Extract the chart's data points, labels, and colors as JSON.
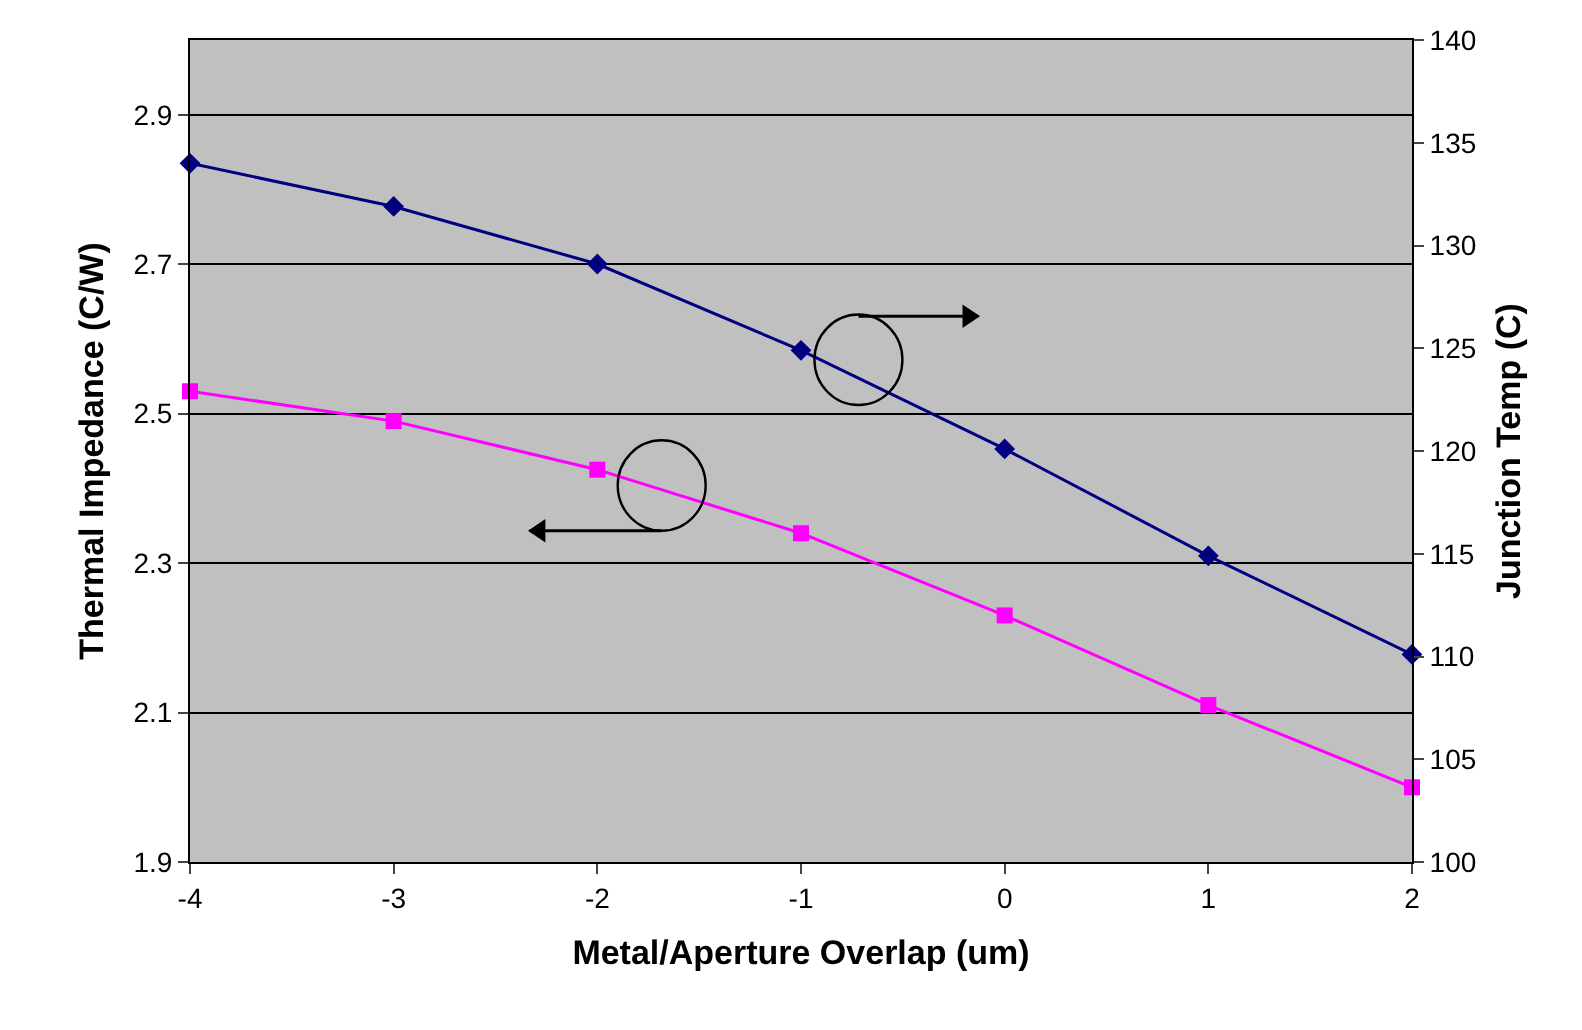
{
  "chart_data": {
    "type": "line",
    "xlabel": "Metal/Aperture Overlap (um)",
    "ylabel": "Thermal Impedance (C/W)",
    "y2label": "Junction Temp (C)",
    "x": [
      -4,
      -3,
      -2,
      -1,
      0,
      1,
      2
    ],
    "series": [
      {
        "color": "#ff00ff",
        "marker": "square",
        "values": [
          2.53,
          2.49,
          2.425,
          2.34,
          2.23,
          2.11,
          2.0
        ]
      },
      {
        "color": "#000080",
        "marker": "diamond",
        "axis": "y2",
        "values": [
          134,
          131.9,
          129.1,
          124.9,
          120.1,
          114.9,
          110.1
        ]
      }
    ],
    "xlim": [
      -4,
      2
    ],
    "xticks": [
      -4,
      -3,
      -2,
      -1,
      0,
      1,
      2
    ],
    "ylim": [
      1.9,
      3.0
    ],
    "yticks": [
      1.9,
      2.1,
      2.3,
      2.5,
      2.7,
      2.9
    ],
    "y2lim": [
      100,
      140
    ],
    "y2ticks": [
      100,
      105,
      110,
      115,
      120,
      125,
      130,
      135,
      140
    ],
    "grid": "y",
    "line_style": "solid"
  }
}
